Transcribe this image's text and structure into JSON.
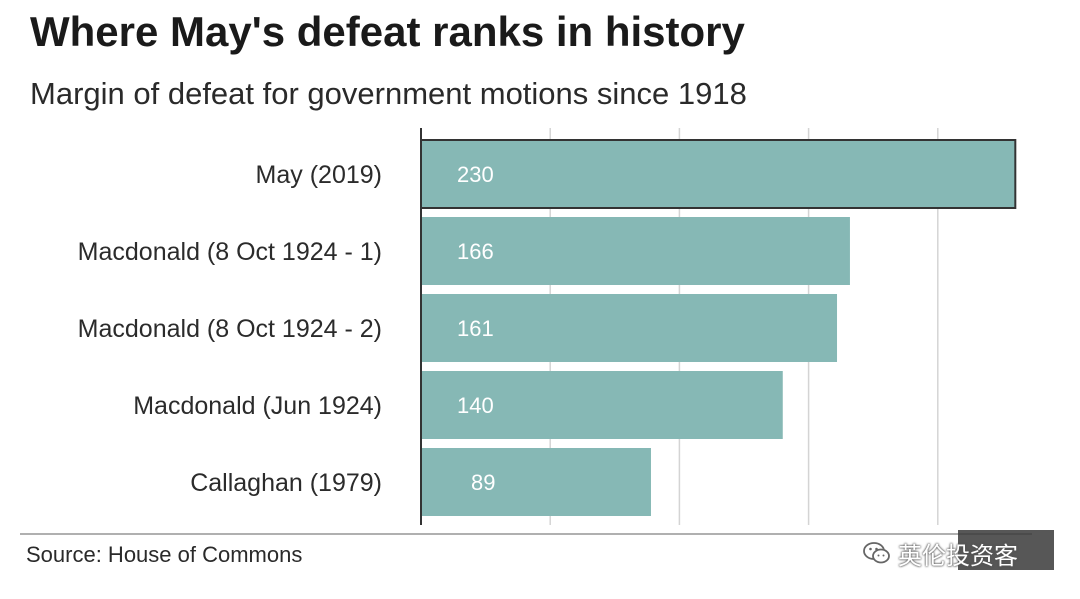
{
  "header": {
    "title": "Where May's defeat ranks in history",
    "subtitle": "Margin of defeat for government motions since 1918"
  },
  "chart_data": {
    "type": "bar",
    "orientation": "horizontal",
    "title": "Where May's defeat ranks in history",
    "subtitle": "Margin of defeat for government motions since 1918",
    "categories": [
      "May (2019)",
      "Macdonald (8 Oct 1924 - 1)",
      "Macdonald (8 Oct 1924 - 2)",
      "Macdonald (Jun 1924)",
      "Callaghan (1979)"
    ],
    "values": [
      230,
      166,
      161,
      140,
      89
    ],
    "highlight_index": 0,
    "xlim": [
      0,
      250
    ],
    "gridlines": [
      50,
      100,
      150,
      200
    ],
    "grid": true,
    "xlabel": "",
    "ylabel": "",
    "bar_color": "#86b8b5",
    "highlight_outline": "#333333",
    "value_label_color": "#ffffff"
  },
  "footer": {
    "source": "Source: House of Commons",
    "watermark": "英伦投资客",
    "watermark_icon": "wechat-icon"
  }
}
